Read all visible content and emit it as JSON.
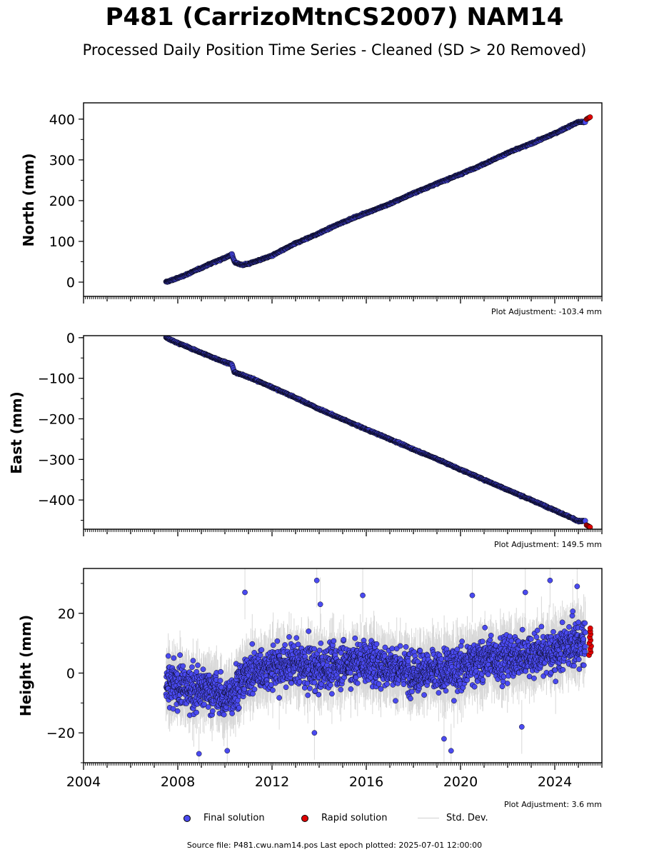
{
  "header": {
    "title": "P481 (CarrizoMtnCS2007) NAM14",
    "subtitle": "Processed Daily Position Time Series - Cleaned (SD > 20 Removed)"
  },
  "legend": {
    "final": "Final solution",
    "rapid": "Rapid solution",
    "std": "Std. Dev."
  },
  "footer": {
    "source": "Source file: P481.cwu.nam14.pos  Last epoch plotted: 2025-07-01 12:00:00"
  },
  "colors": {
    "final": "#4a4af0",
    "rapid": "#e00000",
    "std": "#c8c8c8",
    "edge": "#000000"
  },
  "chart_data": [
    {
      "type": "scatter",
      "panel": "north",
      "ylabel": "North (mm)",
      "xlim": [
        2004.0,
        2026.0
      ],
      "ylim": [
        -35,
        440
      ],
      "yticks": [
        0,
        100,
        200,
        300,
        400
      ],
      "adjustment": "Plot Adjustment: -103.4 mm",
      "series": [
        {
          "name": "Final solution",
          "x": [
            2007.5,
            2008.0,
            2008.5,
            2009.0,
            2009.5,
            2010.0,
            2010.3,
            2010.4,
            2010.7,
            2011.0,
            2012.0,
            2013.0,
            2014.0,
            2015.0,
            2016.0,
            2017.0,
            2018.0,
            2019.0,
            2020.0,
            2021.0,
            2022.0,
            2023.0,
            2024.0,
            2025.0
          ],
          "y": [
            0,
            10,
            22,
            35,
            48,
            60,
            68,
            50,
            42,
            45,
            65,
            95,
            120,
            147,
            170,
            192,
            218,
            242,
            265,
            290,
            317,
            340,
            365,
            393
          ]
        },
        {
          "name": "Rapid solution",
          "x": [
            2025.35,
            2025.5
          ],
          "y": [
            400,
            405
          ]
        }
      ]
    },
    {
      "type": "scatter",
      "panel": "east",
      "ylabel": "East (mm)",
      "xlim": [
        2004.0,
        2026.0
      ],
      "ylim": [
        -472,
        5
      ],
      "yticks": [
        0,
        -100,
        -200,
        -300,
        -400
      ],
      "adjustment": "Plot Adjustment: 149.5 mm",
      "series": [
        {
          "name": "Final solution",
          "x": [
            2007.5,
            2008.0,
            2008.5,
            2009.0,
            2009.5,
            2010.0,
            2010.3,
            2010.4,
            2011.0,
            2012.0,
            2013.0,
            2014.0,
            2015.0,
            2016.0,
            2017.0,
            2018.0,
            2019.0,
            2020.0,
            2021.0,
            2022.0,
            2023.0,
            2024.0,
            2025.0
          ],
          "y": [
            0,
            -13,
            -25,
            -37,
            -49,
            -60,
            -66,
            -85,
            -97,
            -122,
            -148,
            -176,
            -201,
            -226,
            -250,
            -275,
            -299,
            -325,
            -350,
            -375,
            -400,
            -425,
            -452
          ]
        },
        {
          "name": "Rapid solution",
          "x": [
            2025.35,
            2025.5
          ],
          "y": [
            -462,
            -467
          ]
        }
      ]
    },
    {
      "type": "scatter",
      "panel": "height",
      "ylabel": "Height (mm)",
      "xlim": [
        2004.0,
        2026.0
      ],
      "ylim": [
        -30,
        35
      ],
      "yticks": [
        -20,
        0,
        20
      ],
      "xticks": [
        "2004",
        "2008",
        "2012",
        "2016",
        "2020",
        "2024"
      ],
      "adjustment": "Plot Adjustment: 3.6 mm",
      "series": [
        {
          "name": "Final solution",
          "x": [
            2007.5,
            2008.5,
            2009.5,
            2010.0,
            2011.0,
            2012.0,
            2013.0,
            2014.0,
            2015.0,
            2016.0,
            2017.0,
            2018.0,
            2019.0,
            2020.0,
            2021.0,
            2022.0,
            2023.0,
            2024.0,
            2025.0
          ],
          "y": [
            -4,
            -5,
            -6,
            -9,
            0,
            2,
            3,
            1,
            3,
            4,
            2,
            1,
            0,
            2,
            5,
            5,
            6,
            7,
            10
          ],
          "spread": 8,
          "outliers": [
            {
              "x": 2008.9,
              "y": -27
            },
            {
              "x": 2010.1,
              "y": -26
            },
            {
              "x": 2010.85,
              "y": 27
            },
            {
              "x": 2013.9,
              "y": 31
            },
            {
              "x": 2014.05,
              "y": 23
            },
            {
              "x": 2013.8,
              "y": -20
            },
            {
              "x": 2015.85,
              "y": 26
            },
            {
              "x": 2019.3,
              "y": -22
            },
            {
              "x": 2019.6,
              "y": -26
            },
            {
              "x": 2020.5,
              "y": 26
            },
            {
              "x": 2022.6,
              "y": -18
            },
            {
              "x": 2022.75,
              "y": 27
            },
            {
              "x": 2023.8,
              "y": 31
            },
            {
              "x": 2024.95,
              "y": 29
            }
          ]
        },
        {
          "name": "Rapid solution",
          "x": [
            2025.5,
            2025.5,
            2025.5,
            2025.5,
            2025.5,
            2025.5,
            2025.5,
            2025.5,
            2025.5,
            2025.5
          ],
          "y": [
            6,
            7,
            8,
            9,
            10,
            11,
            12,
            13,
            14,
            15
          ]
        }
      ]
    }
  ]
}
